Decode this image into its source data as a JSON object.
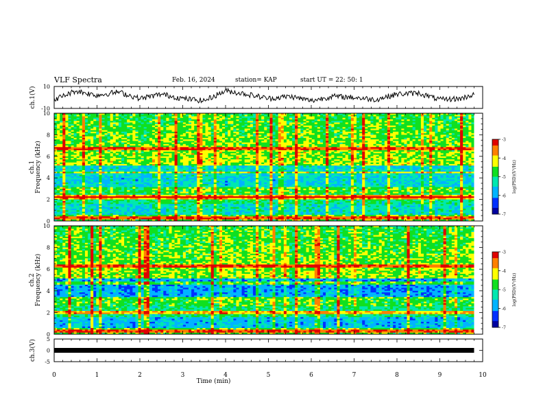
{
  "header": {
    "title": "VLF Spectra",
    "date": "Feb. 16, 2024",
    "station": "station= KAP",
    "start": "start  UT  =   22: 50: 1"
  },
  "colors": {
    "spectrogram": [
      "#0000a0",
      "#0030ff",
      "#00b4ff",
      "#00e8b0",
      "#10e020",
      "#ffff00",
      "#ff8000",
      "#e00000"
    ],
    "trace": "#000000"
  },
  "chart_data": [
    {
      "type": "line",
      "name": "ch1-waveform",
      "ylabel": "ch.1(V)",
      "ylim": [
        -10,
        10
      ],
      "yticks": [
        "10",
        "-10"
      ],
      "xlim": [
        0,
        10
      ],
      "trace_extent_min": 9.8,
      "description_points": [
        [
          0,
          -2
        ],
        [
          0.5,
          6
        ],
        [
          1,
          2
        ],
        [
          1.5,
          5
        ],
        [
          2,
          -1
        ],
        [
          2.5,
          3
        ],
        [
          3,
          -1
        ],
        [
          3.5,
          -3
        ],
        [
          4,
          6
        ],
        [
          4.5,
          3
        ],
        [
          5,
          -1
        ],
        [
          5.5,
          1
        ],
        [
          6,
          -3
        ],
        [
          6.5,
          1
        ],
        [
          7,
          0
        ],
        [
          7.5,
          -2
        ],
        [
          8,
          3
        ],
        [
          8.5,
          4
        ],
        [
          9,
          -2
        ],
        [
          9.5,
          -1
        ],
        [
          9.8,
          3
        ]
      ]
    },
    {
      "type": "heatmap",
      "name": "ch1-spectrogram",
      "ylabel": "ch.1\nFrequency  (kHz)",
      "xlim": [
        0,
        10
      ],
      "ylim": [
        0,
        10
      ],
      "yticks": [
        "0",
        "2",
        "4",
        "6",
        "8",
        "10"
      ],
      "colorbar": {
        "label": "log(PSD)(V²/Hz)",
        "range": [
          -7,
          -3
        ],
        "ticks": [
          "-3",
          "-4",
          "-5",
          "-6",
          "-7"
        ]
      },
      "dominant_bands_kHz": [
        0.3,
        2.1,
        2.3,
        4.5,
        6.7
      ]
    },
    {
      "type": "heatmap",
      "name": "ch2-spectrogram",
      "ylabel": "ch.2\nFrequency  (kHz)",
      "xlim": [
        0,
        10
      ],
      "ylim": [
        0,
        10
      ],
      "yticks": [
        "0",
        "2",
        "4",
        "6",
        "8",
        "10"
      ],
      "colorbar": {
        "label": "log(PSD)(V²/Hz)",
        "range": [
          -7,
          -3
        ],
        "ticks": [
          "-3",
          "-4",
          "-5",
          "-6",
          "-7"
        ]
      },
      "dominant_bands_kHz": [
        0.3,
        2.0,
        3.3,
        4.7,
        6.3
      ]
    },
    {
      "type": "line",
      "name": "ch3-waveform",
      "ylabel": "ch.3(V)",
      "ylim": [
        -5,
        5
      ],
      "yticks": [
        "5",
        "0",
        "-5"
      ],
      "xlim": [
        0,
        10
      ],
      "level": 0,
      "trace_extent_min": 9.8
    }
  ],
  "xaxis": {
    "label": "Time  (min)",
    "ticks": [
      "0",
      "1",
      "2",
      "3",
      "4",
      "5",
      "6",
      "7",
      "8",
      "9",
      "10"
    ]
  }
}
